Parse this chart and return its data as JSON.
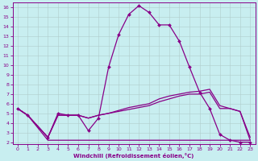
{
  "background_color": "#c8eef0",
  "grid_color": "#b0cccc",
  "line_color": "#880088",
  "xlabel": "Windchill (Refroidissement éolien,°C)",
  "xlim": [
    -0.5,
    23.5
  ],
  "ylim": [
    1.8,
    16.5
  ],
  "xticks": [
    0,
    1,
    2,
    3,
    4,
    5,
    6,
    7,
    8,
    9,
    10,
    11,
    12,
    13,
    14,
    15,
    16,
    17,
    18,
    19,
    20,
    21,
    22,
    23
  ],
  "yticks": [
    2,
    3,
    4,
    5,
    6,
    7,
    8,
    9,
    10,
    11,
    12,
    13,
    14,
    15,
    16
  ],
  "curve1_x": [
    0,
    1,
    3,
    4,
    5,
    6,
    7,
    8,
    9,
    10,
    11,
    12,
    13,
    14,
    15,
    16,
    17,
    18,
    19,
    20,
    21,
    22,
    23
  ],
  "curve1_y": [
    5.5,
    4.8,
    2.5,
    5.0,
    4.8,
    4.8,
    3.2,
    4.5,
    9.8,
    13.2,
    15.3,
    16.2,
    15.5,
    14.2,
    14.2,
    12.5,
    9.8,
    7.2,
    5.5,
    2.8,
    2.2,
    2.0,
    2.0
  ],
  "curve2_x": [
    0,
    1,
    3,
    4,
    5,
    6,
    7,
    8,
    9,
    10,
    11,
    12,
    13,
    14,
    15,
    16,
    17,
    18,
    19,
    20,
    21,
    22,
    23
  ],
  "curve2_y": [
    5.5,
    4.8,
    2.2,
    2.2,
    2.2,
    2.2,
    2.2,
    2.2,
    2.2,
    2.2,
    2.2,
    2.2,
    2.2,
    2.2,
    2.2,
    2.2,
    2.2,
    2.2,
    2.2,
    2.2,
    2.2,
    2.2,
    2.2
  ],
  "curve3_x": [
    0,
    1,
    3,
    4,
    5,
    6,
    7,
    8,
    9,
    10,
    11,
    12,
    13,
    14,
    15,
    16,
    17,
    18,
    19,
    20,
    21,
    22,
    23
  ],
  "curve3_y": [
    5.5,
    4.8,
    2.5,
    4.8,
    4.8,
    4.8,
    4.5,
    4.8,
    5.0,
    5.2,
    5.4,
    5.6,
    5.8,
    6.2,
    6.5,
    6.8,
    7.0,
    7.0,
    7.2,
    5.5,
    5.5,
    5.2,
    2.2
  ],
  "curve4_x": [
    0,
    1,
    3,
    4,
    5,
    6,
    7,
    8,
    9,
    10,
    11,
    12,
    13,
    14,
    15,
    16,
    17,
    18,
    19,
    20,
    21,
    22,
    23
  ],
  "curve4_y": [
    5.5,
    4.8,
    2.5,
    4.8,
    4.8,
    4.8,
    4.5,
    4.8,
    5.0,
    5.3,
    5.6,
    5.8,
    6.0,
    6.5,
    6.8,
    7.0,
    7.2,
    7.3,
    7.5,
    5.8,
    5.5,
    5.2,
    2.5
  ]
}
